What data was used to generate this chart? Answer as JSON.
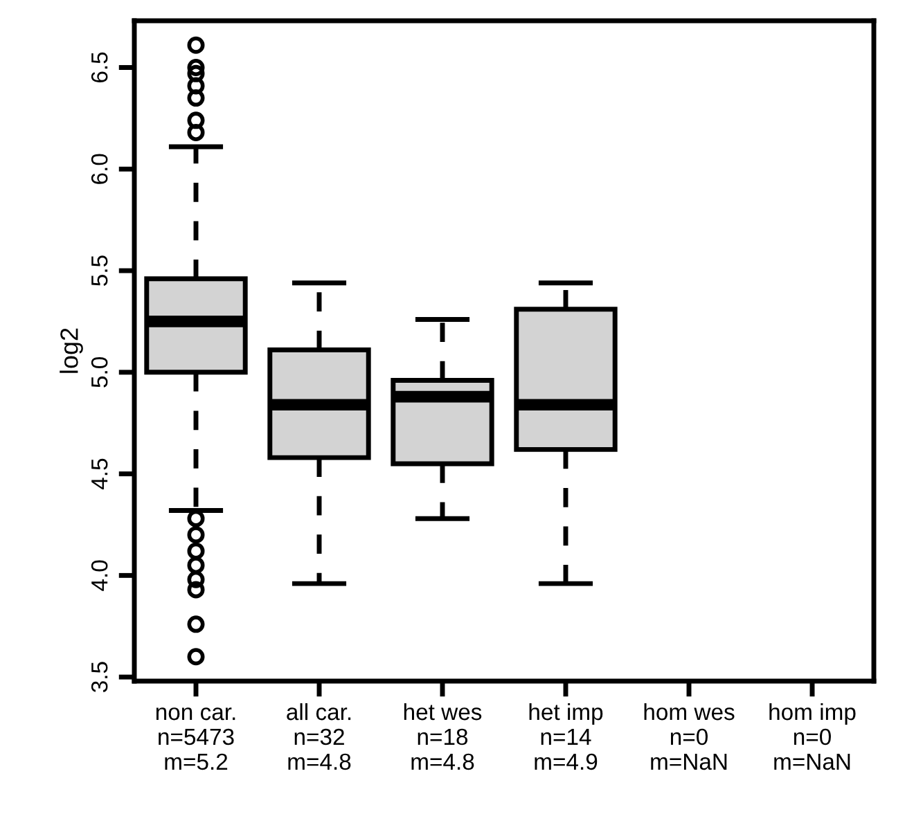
{
  "chart_data": {
    "type": "box",
    "ylabel": "log2",
    "categories": [
      "non car.\nn=5473\nm=5.2",
      "all car.\nn=32\nm=4.8",
      "het wes\nn=18\nm=4.8",
      "het imp\nn=14\nm=4.9",
      "hom wes\nn=0\nm=NaN",
      "hom imp\nn=0\nm=NaN"
    ],
    "boxes": [
      {
        "low": 4.32,
        "q1": 5.0,
        "median": 5.25,
        "q3": 5.46,
        "high": 6.11,
        "outliers": [
          6.61,
          6.5,
          6.47,
          6.41,
          6.35,
          6.24,
          6.18,
          4.28,
          4.2,
          4.12,
          4.05,
          3.98,
          3.93,
          3.76,
          3.6
        ]
      },
      {
        "low": 3.96,
        "q1": 4.58,
        "median": 4.84,
        "q3": 5.11,
        "high": 5.44
      },
      {
        "low": 4.28,
        "q1": 4.55,
        "median": 4.88,
        "q3": 4.96,
        "high": 5.26
      },
      {
        "low": 3.96,
        "q1": 4.62,
        "median": 4.84,
        "q3": 5.31,
        "high": 5.44
      },
      null,
      null
    ],
    "color": "#d3d3d3",
    "ylim": [
      3.48,
      6.73
    ],
    "yticks": [
      3.5,
      {
        "value": 4,
        "label": "4.0"
      },
      4.5,
      {
        "value": 5,
        "label": "5.0"
      },
      5.5,
      {
        "value": 6,
        "label": "6.0"
      },
      6.5
    ],
    "grid": false
  }
}
